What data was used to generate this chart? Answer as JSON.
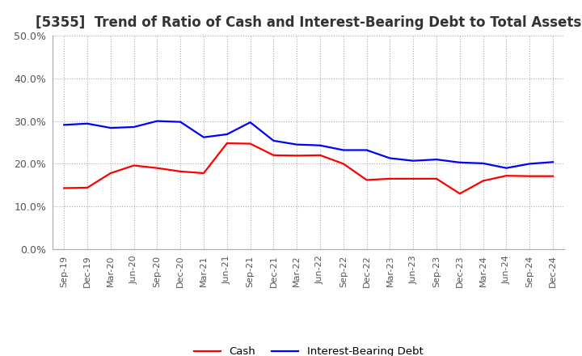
{
  "title": "[5355]  Trend of Ratio of Cash and Interest-Bearing Debt to Total Assets",
  "labels": [
    "Sep-19",
    "Dec-19",
    "Mar-20",
    "Jun-20",
    "Sep-20",
    "Dec-20",
    "Mar-21",
    "Jun-21",
    "Sep-21",
    "Dec-21",
    "Mar-22",
    "Jun-22",
    "Sep-22",
    "Dec-22",
    "Mar-23",
    "Jun-23",
    "Sep-23",
    "Dec-23",
    "Mar-24",
    "Jun-24",
    "Sep-24",
    "Dec-24"
  ],
  "cash": [
    0.143,
    0.144,
    0.178,
    0.196,
    0.19,
    0.182,
    0.178,
    0.248,
    0.247,
    0.22,
    0.219,
    0.22,
    0.2,
    0.162,
    0.165,
    0.165,
    0.165,
    0.13,
    0.16,
    0.172,
    0.171,
    0.171
  ],
  "interest_bearing_debt": [
    0.291,
    0.294,
    0.284,
    0.286,
    0.3,
    0.298,
    0.262,
    0.269,
    0.297,
    0.254,
    0.245,
    0.243,
    0.232,
    0.232,
    0.213,
    0.207,
    0.21,
    0.203,
    0.201,
    0.19,
    0.2,
    0.204
  ],
  "cash_color": "#ff0000",
  "ibd_color": "#0000ff",
  "ylim": [
    0.0,
    0.5
  ],
  "yticks": [
    0.0,
    0.1,
    0.2,
    0.3,
    0.4,
    0.5
  ],
  "background_color": "#ffffff",
  "grid_color": "#aaaaaa",
  "title_fontsize": 12,
  "title_color": "#333333",
  "legend_cash": "Cash",
  "legend_ibd": "Interest-Bearing Debt",
  "tick_fontsize": 8,
  "ytick_fontsize": 9
}
